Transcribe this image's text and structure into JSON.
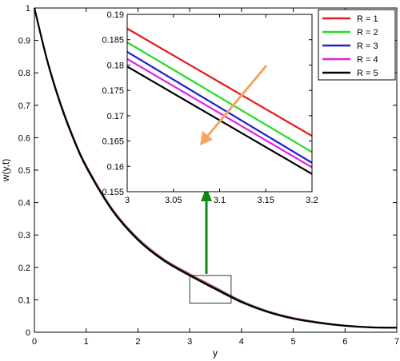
{
  "chart_data": {
    "type": "line",
    "xlabel": "y",
    "ylabel": "w(y,t)",
    "xlim": [
      0,
      7
    ],
    "ylim": [
      0,
      1
    ],
    "xticks": [
      "0",
      "1",
      "2",
      "3",
      "4",
      "5",
      "6",
      "7"
    ],
    "yticks": [
      "0",
      "0.1",
      "0.2",
      "0.3",
      "0.4",
      "0.5",
      "0.6",
      "0.7",
      "0.8",
      "0.9",
      "1"
    ],
    "x": [
      0,
      0.25,
      0.5,
      0.75,
      1,
      1.5,
      2,
      2.5,
      3,
      3.5,
      4,
      4.5,
      5,
      5.5,
      6,
      6.5,
      7
    ],
    "series": [
      {
        "name": "R = 1",
        "color": "#e41a1c",
        "values": [
          1.0,
          0.84,
          0.71,
          0.603,
          0.515,
          0.382,
          0.29,
          0.226,
          0.18,
          0.138,
          0.097,
          0.066,
          0.045,
          0.031,
          0.021,
          0.016,
          0.015
        ]
      },
      {
        "name": "R = 2",
        "color": "#22dd22",
        "values": [
          1.0,
          0.839,
          0.708,
          0.601,
          0.513,
          0.38,
          0.288,
          0.224,
          0.178,
          0.136,
          0.096,
          0.065,
          0.044,
          0.03,
          0.021,
          0.016,
          0.015
        ]
      },
      {
        "name": "R = 3",
        "color": "#1f1fcc",
        "values": [
          1.0,
          0.838,
          0.707,
          0.6,
          0.512,
          0.379,
          0.287,
          0.223,
          0.177,
          0.135,
          0.095,
          0.064,
          0.043,
          0.03,
          0.02,
          0.015,
          0.014
        ]
      },
      {
        "name": "R = 4",
        "color": "#e020e0",
        "values": [
          1.0,
          0.837,
          0.706,
          0.599,
          0.511,
          0.378,
          0.286,
          0.222,
          0.176,
          0.134,
          0.094,
          0.064,
          0.043,
          0.029,
          0.02,
          0.015,
          0.014
        ]
      },
      {
        "name": "R = 5",
        "color": "#000000",
        "values": [
          1.0,
          0.836,
          0.705,
          0.598,
          0.51,
          0.377,
          0.285,
          0.221,
          0.175,
          0.133,
          0.093,
          0.063,
          0.042,
          0.029,
          0.02,
          0.015,
          0.014
        ]
      }
    ],
    "legend": "top-right",
    "zoom_box": {
      "xlim": [
        3.0,
        3.8
      ],
      "ylim": [
        0.09,
        0.175
      ]
    },
    "inset": {
      "xlim": [
        3,
        3.2
      ],
      "ylim": [
        0.155,
        0.19
      ],
      "xticks": [
        "3",
        "3.05",
        "3.1",
        "3.15",
        "3.2"
      ],
      "yticks": [
        "0.155",
        "0.16",
        "0.165",
        "0.17",
        "0.175",
        "0.18",
        "0.185",
        "0.19"
      ],
      "series": [
        {
          "name": "R = 1",
          "color": "#e41a1c",
          "start": 0.1872,
          "end": 0.166
        },
        {
          "name": "R = 2",
          "color": "#22dd22",
          "start": 0.1845,
          "end": 0.1628
        },
        {
          "name": "R = 3",
          "color": "#1f1fcc",
          "start": 0.1826,
          "end": 0.1607
        },
        {
          "name": "R = 4",
          "color": "#e020e0",
          "start": 0.1812,
          "end": 0.1598
        },
        {
          "name": "R = 5",
          "color": "#000000",
          "start": 0.1797,
          "end": 0.1585
        }
      ],
      "arrow_color": "#f4a460"
    },
    "pointer_arrow_color": "#118811"
  }
}
